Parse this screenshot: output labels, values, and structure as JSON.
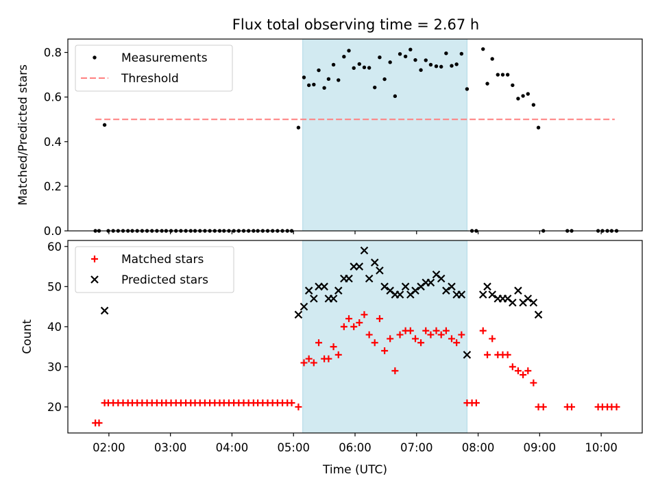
{
  "chart_data": [
    {
      "type": "scatter",
      "title": "Flux total observing time = 2.67 h",
      "ylabel": "Matched/Predicted stars",
      "ylim": [
        0,
        0.86
      ],
      "xlim": [
        1.333,
        10.667
      ],
      "yticks": [
        0.0,
        0.2,
        0.4,
        0.6,
        0.8
      ],
      "yticklabels": [
        "0.0",
        "0.2",
        "0.4",
        "0.6",
        "0.8"
      ],
      "shaded_region": {
        "x0": 5.15,
        "x1": 7.82,
        "color": "#add8e6"
      },
      "threshold": {
        "name": "Threshold",
        "y": 0.5,
        "x0": 1.78,
        "x1": 10.22,
        "color": "#ff7f7f",
        "style": "dashed"
      },
      "legend": {
        "position": "top-left",
        "entries": [
          "Measurements",
          "Threshold"
        ]
      },
      "series": [
        {
          "name": "Measurements",
          "marker": "dot",
          "color": "#000000",
          "x": [
            1.78,
            1.84,
            1.93,
            1.99,
            2.07,
            2.15,
            2.23,
            2.31,
            2.38,
            2.46,
            2.54,
            2.62,
            2.7,
            2.78,
            2.86,
            2.93,
            3.01,
            3.09,
            3.17,
            3.25,
            3.33,
            3.4,
            3.48,
            3.56,
            3.64,
            3.72,
            3.8,
            3.87,
            3.95,
            4.03,
            4.11,
            4.19,
            4.27,
            4.35,
            4.42,
            4.5,
            4.58,
            4.66,
            4.74,
            4.82,
            4.9,
            4.97,
            5.08,
            5.17,
            5.25,
            5.33,
            5.41,
            5.5,
            5.57,
            5.65,
            5.73,
            5.82,
            5.9,
            5.98,
            6.07,
            6.15,
            6.23,
            6.32,
            6.4,
            6.48,
            6.57,
            6.65,
            6.73,
            6.82,
            6.9,
            6.98,
            7.07,
            7.15,
            7.23,
            7.32,
            7.4,
            7.48,
            7.57,
            7.65,
            7.73,
            7.82,
            7.9,
            7.97,
            8.08,
            8.15,
            8.23,
            8.32,
            8.4,
            8.48,
            8.56,
            8.65,
            8.73,
            8.81,
            8.9,
            8.98,
            9.06,
            9.45,
            9.52,
            9.95,
            10.02,
            10.1,
            10.17,
            10.25
          ],
          "y": [
            0.0,
            0.0,
            0.475,
            0.0,
            0.0,
            0.0,
            0.0,
            0.0,
            0.0,
            0.0,
            0.0,
            0.0,
            0.0,
            0.0,
            0.0,
            0.0,
            0.0,
            0.0,
            0.0,
            0.0,
            0.0,
            0.0,
            0.0,
            0.0,
            0.0,
            0.0,
            0.0,
            0.0,
            0.0,
            0.0,
            0.0,
            0.0,
            0.0,
            0.0,
            0.0,
            0.0,
            0.0,
            0.0,
            0.0,
            0.0,
            0.0,
            0.0,
            0.463,
            0.688,
            0.653,
            0.656,
            0.72,
            0.641,
            0.681,
            0.745,
            0.676,
            0.781,
            0.808,
            0.73,
            0.748,
            0.733,
            0.731,
            0.643,
            0.778,
            0.68,
            0.756,
            0.604,
            0.793,
            0.782,
            0.813,
            0.766,
            0.721,
            0.765,
            0.745,
            0.738,
            0.736,
            0.796,
            0.74,
            0.747,
            0.794,
            0.636,
            0.0,
            0.0,
            0.815,
            0.66,
            0.771,
            0.7,
            0.7,
            0.7,
            0.653,
            0.593,
            0.605,
            0.614,
            0.565,
            0.463,
            0.0,
            0.0,
            0.0,
            0.0,
            0.0,
            0.0,
            0.0,
            0.0
          ]
        }
      ]
    },
    {
      "type": "scatter",
      "xlabel": "Time (UTC)",
      "ylabel": "Count",
      "ylim": [
        13.5,
        61.5
      ],
      "xlim": [
        1.333,
        10.667
      ],
      "yticks": [
        20,
        30,
        40,
        50,
        60
      ],
      "yticklabels": [
        "20",
        "30",
        "40",
        "50",
        "60"
      ],
      "xticks": [
        2,
        3,
        4,
        5,
        6,
        7,
        8,
        9,
        10
      ],
      "xticklabels": [
        "02:00",
        "03:00",
        "04:00",
        "05:00",
        "06:00",
        "07:00",
        "08:00",
        "09:00",
        "10:00"
      ],
      "shaded_region": {
        "x0": 5.15,
        "x1": 7.82,
        "color": "#add8e6"
      },
      "legend": {
        "position": "top-left",
        "entries": [
          "Matched stars",
          "Predicted stars"
        ]
      },
      "series": [
        {
          "name": "Matched stars",
          "marker": "plus",
          "color": "#ff0000",
          "x": [
            1.78,
            1.84,
            1.93,
            1.99,
            2.07,
            2.15,
            2.23,
            2.31,
            2.38,
            2.46,
            2.54,
            2.62,
            2.7,
            2.78,
            2.86,
            2.93,
            3.01,
            3.09,
            3.17,
            3.25,
            3.33,
            3.4,
            3.48,
            3.56,
            3.64,
            3.72,
            3.8,
            3.87,
            3.95,
            4.03,
            4.11,
            4.19,
            4.27,
            4.35,
            4.42,
            4.5,
            4.58,
            4.66,
            4.74,
            4.82,
            4.9,
            4.97,
            5.08,
            5.17,
            5.25,
            5.33,
            5.41,
            5.5,
            5.57,
            5.65,
            5.73,
            5.82,
            5.9,
            5.98,
            6.07,
            6.15,
            6.23,
            6.32,
            6.4,
            6.48,
            6.57,
            6.65,
            6.73,
            6.82,
            6.9,
            6.98,
            7.07,
            7.15,
            7.23,
            7.32,
            7.4,
            7.48,
            7.57,
            7.65,
            7.73,
            7.82,
            7.9,
            7.97,
            8.08,
            8.15,
            8.23,
            8.32,
            8.4,
            8.48,
            8.56,
            8.65,
            8.73,
            8.81,
            8.9,
            8.98,
            9.06,
            9.45,
            9.52,
            9.95,
            10.02,
            10.1,
            10.17,
            10.25
          ],
          "y": [
            16,
            16,
            21,
            21,
            21,
            21,
            21,
            21,
            21,
            21,
            21,
            21,
            21,
            21,
            21,
            21,
            21,
            21,
            21,
            21,
            21,
            21,
            21,
            21,
            21,
            21,
            21,
            21,
            21,
            21,
            21,
            21,
            21,
            21,
            21,
            21,
            21,
            21,
            21,
            21,
            21,
            21,
            20,
            31,
            32,
            31,
            36,
            32,
            32,
            35,
            33,
            40,
            42,
            40,
            41,
            43,
            38,
            36,
            42,
            34,
            37,
            29,
            38,
            39,
            39,
            37,
            36,
            39,
            38,
            39,
            38,
            39,
            37,
            36,
            38,
            21,
            21,
            21,
            39,
            33,
            37,
            33,
            33,
            33,
            30,
            29,
            28,
            29,
            26,
            20,
            20,
            20,
            20,
            20,
            20,
            20,
            20,
            20
          ]
        },
        {
          "name": "Predicted stars",
          "marker": "x",
          "color": "#000000",
          "x": [
            1.93,
            5.08,
            5.17,
            5.25,
            5.33,
            5.41,
            5.5,
            5.57,
            5.65,
            5.73,
            5.82,
            5.9,
            5.98,
            6.07,
            6.15,
            6.23,
            6.32,
            6.4,
            6.48,
            6.57,
            6.65,
            6.73,
            6.82,
            6.9,
            6.98,
            7.07,
            7.15,
            7.23,
            7.32,
            7.4,
            7.48,
            7.57,
            7.65,
            7.73,
            7.82,
            8.08,
            8.15,
            8.23,
            8.32,
            8.4,
            8.48,
            8.56,
            8.65,
            8.73,
            8.81,
            8.9,
            8.98
          ],
          "y": [
            44,
            43,
            45,
            49,
            47,
            50,
            50,
            47,
            47,
            49,
            52,
            52,
            55,
            55,
            59,
            52,
            56,
            54,
            50,
            49,
            48,
            48,
            50,
            48,
            49,
            50,
            51,
            51,
            53,
            52,
            49,
            50,
            48,
            48,
            33,
            48,
            50,
            48,
            47,
            47,
            47,
            46,
            49,
            46,
            47,
            46,
            43
          ]
        }
      ]
    }
  ]
}
